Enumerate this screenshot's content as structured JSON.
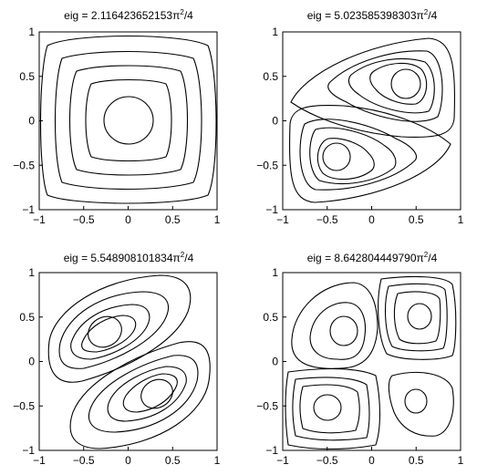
{
  "chart_data": [
    {
      "type": "contour",
      "title": {
        "prefix": "eig = ",
        "value": "2.116423652153",
        "pi": "π",
        "exp": "2",
        "suffix": "/4"
      },
      "xlim": [
        -1,
        1
      ],
      "ylim": [
        -1,
        1
      ],
      "xticks": [
        -1,
        -0.5,
        0,
        0.5,
        1
      ],
      "yticks": [
        -1,
        -0.5,
        0,
        0.5,
        1
      ],
      "xtick_labels": [
        "−1",
        "−0.5",
        "0",
        "0.5",
        "1"
      ],
      "ytick_labels": [
        "−1",
        "−0.5",
        "0",
        "0.5",
        "1"
      ],
      "centers": [
        {
          "x": 0.05,
          "y": 0.0
        }
      ],
      "contour_count": 5
    },
    {
      "type": "contour",
      "title": {
        "prefix": "eig = ",
        "value": "5.023585398303",
        "pi": "π",
        "exp": "2",
        "suffix": "/4"
      },
      "xlim": [
        -1,
        1
      ],
      "ylim": [
        -1,
        1
      ],
      "xticks": [
        -1,
        -0.5,
        0,
        0.5,
        1
      ],
      "yticks": [
        -1,
        -0.5,
        0,
        0.5,
        1
      ],
      "xtick_labels": [
        "−1",
        "−0.5",
        "0",
        "0.5",
        "1"
      ],
      "ytick_labels": [
        "−1",
        "−0.5",
        "0",
        "0.5",
        "1"
      ],
      "centers": [
        {
          "x": 0.4,
          "y": 0.4
        },
        {
          "x": -0.4,
          "y": -0.4
        }
      ],
      "contour_count": 10
    },
    {
      "type": "contour",
      "title": {
        "prefix": "eig = ",
        "value": "5.548908101834",
        "pi": "π",
        "exp": "2",
        "suffix": "/4"
      },
      "xlim": [
        -1,
        1
      ],
      "ylim": [
        -1,
        1
      ],
      "xticks": [
        -1,
        -0.5,
        0,
        0.5,
        1
      ],
      "yticks": [
        -1,
        -0.5,
        0,
        0.5,
        1
      ],
      "xtick_labels": [
        "−1",
        "−0.5",
        "0",
        "0.5",
        "1"
      ],
      "ytick_labels": [
        "−1",
        "−0.5",
        "0",
        "0.5",
        "1"
      ],
      "centers": [
        {
          "x": -0.4,
          "y": 0.35
        },
        {
          "x": 0.4,
          "y": -0.4
        }
      ],
      "contour_count": 10
    },
    {
      "type": "contour",
      "title": {
        "prefix": "eig = ",
        "value": "8.642804449790",
        "pi": "π",
        "exp": "2",
        "suffix": "/4"
      },
      "xlim": [
        -1,
        1
      ],
      "ylim": [
        -1,
        1
      ],
      "xticks": [
        -1,
        -0.5,
        0,
        0.5,
        1
      ],
      "yticks": [
        -1,
        -0.5,
        0,
        0.5,
        1
      ],
      "xtick_labels": [
        "−1",
        "−0.5",
        "0",
        "0.5",
        "1"
      ],
      "ytick_labels": [
        "−1",
        "−0.5",
        "0",
        "0.5",
        "1"
      ],
      "centers": [
        {
          "x": 0.55,
          "y": 0.5
        },
        {
          "x": -0.5,
          "y": -0.5
        },
        {
          "x": -0.4,
          "y": 0.35
        },
        {
          "x": 0.5,
          "y": -0.45
        }
      ],
      "contour_count": 14
    }
  ]
}
